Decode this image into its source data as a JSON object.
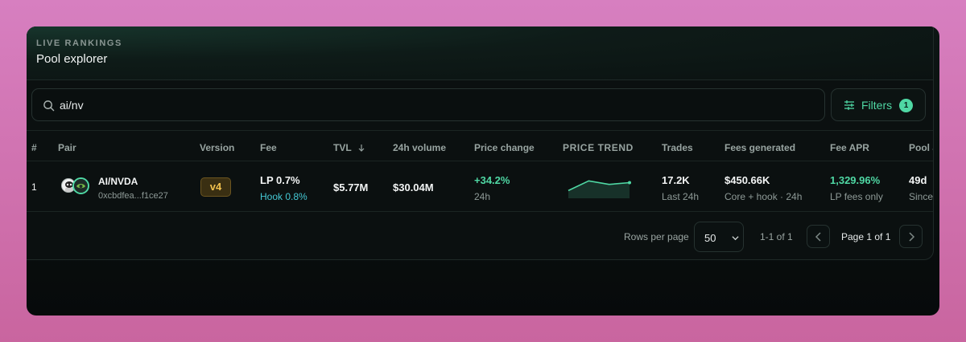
{
  "header": {
    "eyebrow": "LIVE RANKINGS",
    "title": "Pool explorer"
  },
  "search": {
    "value": "ai/nv",
    "icon": "search-icon"
  },
  "filters": {
    "label": "Filters",
    "count": "1",
    "icon": "sliders-icon"
  },
  "table": {
    "columns": {
      "index": "#",
      "pair": "Pair",
      "version": "Version",
      "fee": "Fee",
      "tvl": "TVL",
      "volume": "24h volume",
      "price_change": "Price change",
      "price_trend": "PRICE TREND",
      "trades": "Trades",
      "fees_generated": "Fees generated",
      "fee_apr": "Fee APR",
      "pool_age": "Pool a"
    },
    "sort_icon": "arrow-down-icon",
    "rows": [
      {
        "index": "1",
        "pair": "AI/NVDA",
        "address": "0xcbdfea...f1ce27",
        "version": "v4",
        "fee_lp": "LP 0.7%",
        "fee_hook": "Hook 0.8%",
        "tvl": "$5.77M",
        "volume": "$30.04M",
        "price_change": "+34.2%",
        "price_change_period": "24h",
        "trend": [
          0.3,
          0.85,
          0.65,
          0.75
        ],
        "trades": "17.2K",
        "trades_period": "Last 24h",
        "fees_generated": "$450.66K",
        "fees_note": "Core + hook · 24h",
        "fee_apr": "1,329.96%",
        "fee_apr_note": "LP fees only",
        "pool_age": "49d",
        "pool_age_note": "Since"
      }
    ]
  },
  "pagination": {
    "rows_per_page_label": "Rows per page",
    "rows_per_page": "50",
    "range": "1-1 of 1",
    "page_info": "Page 1 of 1"
  },
  "colors": {
    "accent": "#4fd8a4",
    "hook": "#45c8d4",
    "version_badge": "#f0c04d"
  }
}
